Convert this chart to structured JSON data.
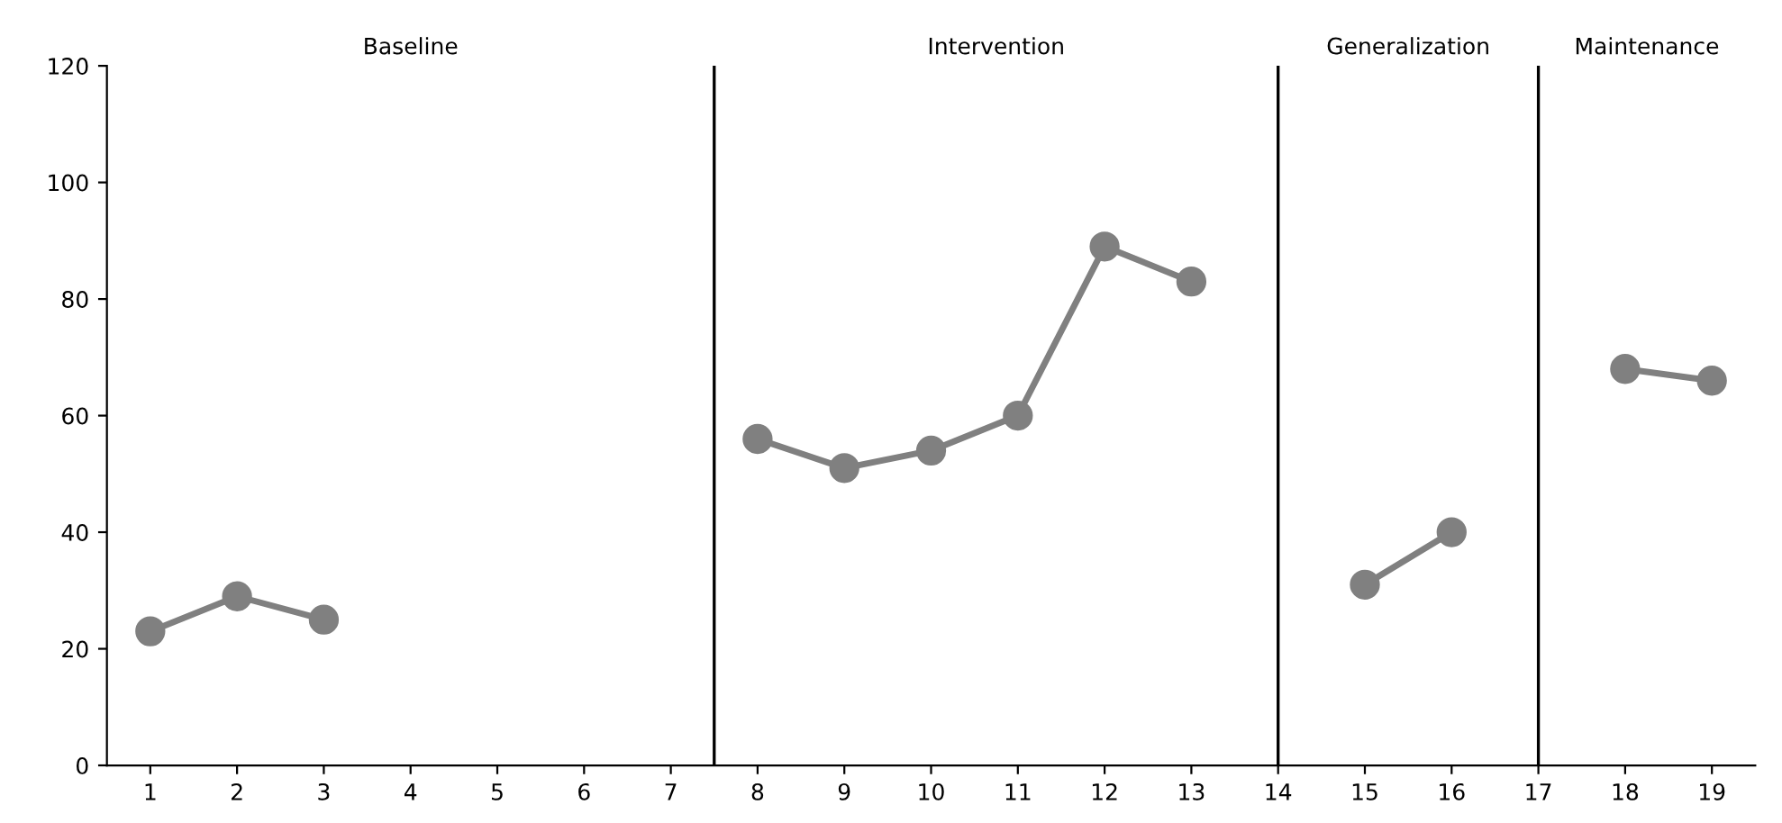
{
  "chart_data": {
    "type": "line",
    "x": [
      1,
      2,
      3,
      4,
      5,
      6,
      7,
      8,
      9,
      10,
      11,
      12,
      13,
      14,
      15,
      16,
      17,
      18,
      19
    ],
    "series": [
      {
        "color": "#808080",
        "values": [
          23,
          29,
          25,
          null,
          null,
          null,
          null,
          56,
          51,
          54,
          60,
          89,
          83,
          null,
          31,
          40,
          null,
          68,
          66
        ]
      }
    ],
    "xlim": [
      0.5,
      19.5
    ],
    "xticks": [
      1,
      2,
      3,
      4,
      5,
      6,
      7,
      8,
      9,
      10,
      11,
      12,
      13,
      14,
      15,
      16,
      17,
      18,
      19
    ],
    "ylim": [
      0,
      120
    ],
    "yticks": [
      0,
      20,
      40,
      60,
      80,
      100,
      120
    ],
    "marker": "circle",
    "line_style": "solid",
    "grid": false,
    "legend": false,
    "ref_lines": [
      {
        "axis": "x",
        "value": 7.5,
        "color": "#000000"
      },
      {
        "axis": "x",
        "value": 14,
        "color": "#000000"
      },
      {
        "axis": "x",
        "value": 17,
        "color": "#000000"
      }
    ],
    "annotations": [
      "Baseline",
      "Intervention",
      "Generalization",
      "Maintenance"
    ]
  }
}
